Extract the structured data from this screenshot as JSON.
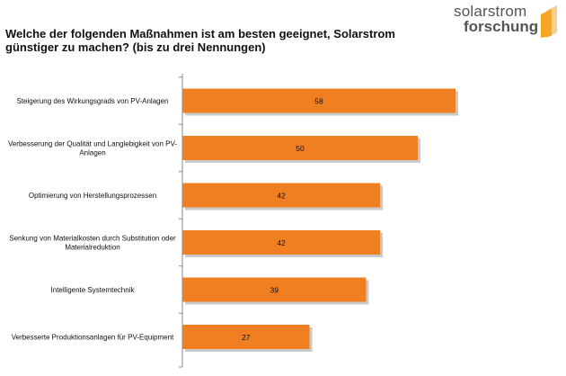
{
  "header": {
    "question_line1": "Welche der folgenden Maßnahmen ist am besten geeignet, Solarstrom",
    "question_line2": "günstiger zu machen? (bis zu drei Nennungen)",
    "logo_line1": "solarstrom",
    "logo_line2": "forschung"
  },
  "colors": {
    "bar": "#f07f22",
    "bar_shadow": "#c9c9c9",
    "axis": "#8a8a8a",
    "logo_mark": "#f5a623"
  },
  "chart_data": {
    "type": "bar",
    "orientation": "horizontal",
    "categories": [
      "Steigerung des Wirkungsgrads von PV-Anlagen",
      "Verbesserung der Qualität und Langlebigkeit von PV-Anlagen",
      "Optimierung von Herstellungsprozessen",
      "Senkung von Materialkosten durch Substitution oder Materialreduktion",
      "Intelligente Systemtechnik",
      "Verbesserte Produktionsanlagen für PV-Equipment"
    ],
    "category_lines": [
      [
        "Steigerung des Wirkungsgrads von PV-Anlagen"
      ],
      [
        "Verbesserung der Qualität und Langlebigkeit von PV-",
        "Anlagen"
      ],
      [
        "Optimierung von Herstellungsprozessen"
      ],
      [
        "Senkung von Materialkosten durch Substitution oder",
        "Materialreduktion"
      ],
      [
        "Intelligente Systemtechnik"
      ],
      [
        "Verbesserte Produktionsanlagen für PV-Equipment"
      ]
    ],
    "values": [
      58,
      50,
      42,
      42,
      39,
      27
    ],
    "data_labels": [
      "58",
      "50",
      "42",
      "42",
      "39",
      "27"
    ],
    "xlim": [
      0,
      65
    ],
    "grid": false,
    "legend": "none"
  }
}
